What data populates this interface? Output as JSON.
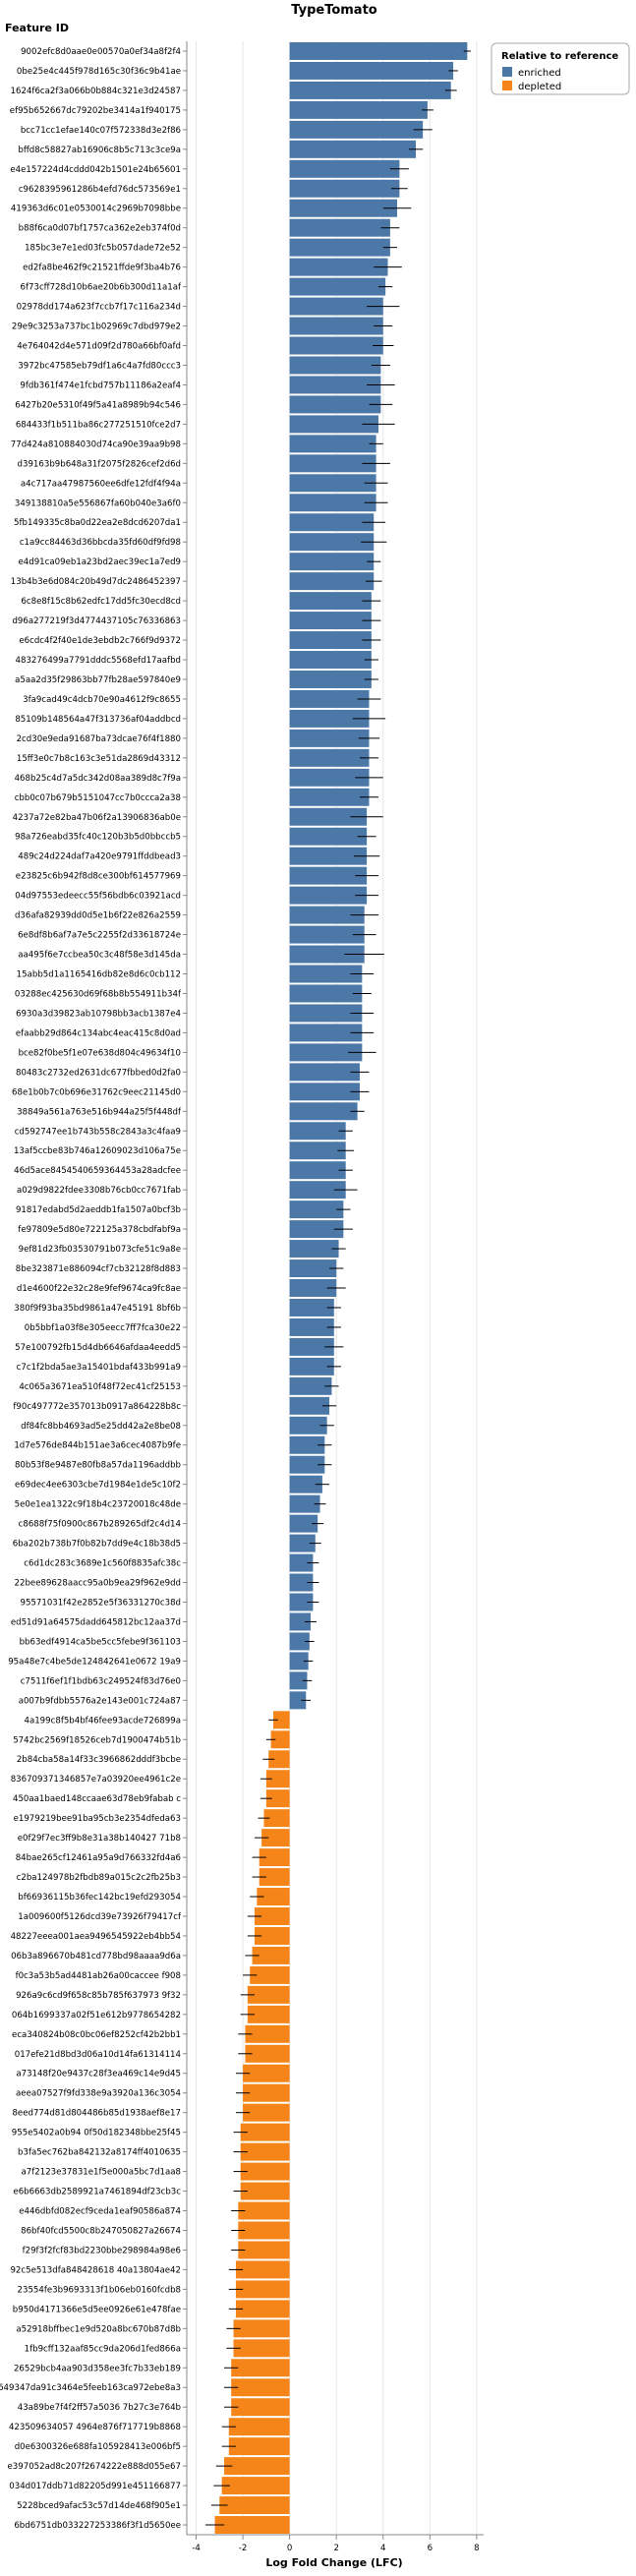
{
  "chart_data": {
    "type": "bar",
    "orientation": "horizontal",
    "title": "TypeTomato",
    "xlabel": "Log Fold Change (LFC)",
    "ylabel": "Feature ID",
    "xlim": [
      -4.4,
      8.3
    ],
    "xticks": [
      -4,
      -2,
      0,
      2,
      4,
      6,
      8
    ],
    "grid": true,
    "legend": {
      "title": "Relative to reference",
      "position": "top-right",
      "entries": [
        {
          "name": "enriched",
          "color": "#4c78a8"
        },
        {
          "name": "depleted",
          "color": "#f58518"
        }
      ]
    },
    "bars": [
      {
        "id": "9002efc8d0aae0e00570a0ef34a8f2f4",
        "value": 7.6,
        "err": 0.15,
        "group": "enriched"
      },
      {
        "id": "0be25e4c445f978d165c30f36c9b41ae",
        "value": 7.0,
        "err": 0.2,
        "group": "enriched"
      },
      {
        "id": "1624f6ca2f3a066b0b884c321e3d24587",
        "value": 6.9,
        "err": 0.25,
        "group": "enriched"
      },
      {
        "id": "ef95b652667dc79202be3414a1f940175",
        "value": 5.9,
        "err": 0.25,
        "group": "enriched"
      },
      {
        "id": "bcc71cc1efae140c07f572338d3e2f86",
        "value": 5.7,
        "err": 0.4,
        "group": "enriched"
      },
      {
        "id": "bffd8c58827ab16906c8b5c713c3ce9a",
        "value": 5.4,
        "err": 0.3,
        "group": "enriched"
      },
      {
        "id": "e4e157224d4cddd042b1501e24b65601",
        "value": 4.7,
        "err": 0.4,
        "group": "enriched"
      },
      {
        "id": "c9628395961286b4efd76dc573569e1",
        "value": 4.7,
        "err": 0.35,
        "group": "enriched"
      },
      {
        "id": "419363d6c01e0530014c2969b7098bbe",
        "value": 4.6,
        "err": 0.6,
        "group": "enriched"
      },
      {
        "id": "b88f6ca0d07bf1757ca362e2eb374f0d",
        "value": 4.3,
        "err": 0.4,
        "group": "enriched"
      },
      {
        "id": "185bc3e7e1ed03fc5b057dade72e52",
        "value": 4.3,
        "err": 0.3,
        "group": "enriched"
      },
      {
        "id": "ed2fa8be462f9c21521ffde9f3ba4b76",
        "value": 4.2,
        "err": 0.6,
        "group": "enriched"
      },
      {
        "id": "6f73cff728d10b6ae20b6b300d11a1af",
        "value": 4.1,
        "err": 0.3,
        "group": "enriched"
      },
      {
        "id": "02978dd174a623f7ccb7f17c116a234d",
        "value": 4.0,
        "err": 0.7,
        "group": "enriched"
      },
      {
        "id": "29e9c3253a737bc1b02969c7dbd979e2",
        "value": 4.0,
        "err": 0.4,
        "group": "enriched"
      },
      {
        "id": "4e764042d4e571d09f2d780a66bf0afd",
        "value": 4.0,
        "err": 0.45,
        "group": "enriched"
      },
      {
        "id": "3972bc47585eb79df1a6c4a7fd80ccc3",
        "value": 3.9,
        "err": 0.4,
        "group": "enriched"
      },
      {
        "id": "9fdb361f474e1fcbd757b11186a2eaf4",
        "value": 3.9,
        "err": 0.6,
        "group": "enriched"
      },
      {
        "id": "6427b20e5310f49f5a41a8989b94c546",
        "value": 3.9,
        "err": 0.5,
        "group": "enriched"
      },
      {
        "id": "684433f1b511ba86c277251510fce2d7",
        "value": 3.8,
        "err": 0.7,
        "group": "enriched"
      },
      {
        "id": "77d424a810884030d74ca90e39aa9b98",
        "value": 3.7,
        "err": 0.3,
        "group": "enriched"
      },
      {
        "id": "d39163b9b648a31f2075f2826cef2d6d",
        "value": 3.7,
        "err": 0.6,
        "group": "enriched"
      },
      {
        "id": "a4c717aa47987560ee6dfe12fdf4f94a",
        "value": 3.7,
        "err": 0.5,
        "group": "enriched"
      },
      {
        "id": "349138810a5e556867fa60b040e3a6f0",
        "value": 3.7,
        "err": 0.5,
        "group": "enriched"
      },
      {
        "id": "5fb149335c8ba0d22ea2e8dcd6207da1",
        "value": 3.6,
        "err": 0.5,
        "group": "enriched"
      },
      {
        "id": "c1a9cc84463d36bbcda35fd60df9fd98",
        "value": 3.6,
        "err": 0.55,
        "group": "enriched"
      },
      {
        "id": "e4d91ca09eb1a23bd2aec39ec1a7ed9",
        "value": 3.6,
        "err": 0.3,
        "group": "enriched"
      },
      {
        "id": "13b4b3e6d084c20b49d7dc2486452397",
        "value": 3.6,
        "err": 0.35,
        "group": "enriched"
      },
      {
        "id": "6c8e8f15c8b62edfc17dd5fc30ecd8cd",
        "value": 3.5,
        "err": 0.4,
        "group": "enriched"
      },
      {
        "id": "d96a277219f3d4774437105c76336863",
        "value": 3.5,
        "err": 0.4,
        "group": "enriched"
      },
      {
        "id": "e6cdc4f2f40e1de3ebdb2c766f9d9372",
        "value": 3.5,
        "err": 0.4,
        "group": "enriched"
      },
      {
        "id": "483276499a7791dddc5568efd17aafbd",
        "value": 3.5,
        "err": 0.3,
        "group": "enriched"
      },
      {
        "id": "a5aa2d35f29863bb77fb28ae597840e9",
        "value": 3.5,
        "err": 0.3,
        "group": "enriched"
      },
      {
        "id": "3fa9cad49c4dcb70e90a4612f9c8655",
        "value": 3.4,
        "err": 0.5,
        "group": "enriched"
      },
      {
        "id": "85109b148564a47f313736af04addbcd",
        "value": 3.4,
        "err": 0.7,
        "group": "enriched"
      },
      {
        "id": "2cd30e9eda91687ba73dcae76f4f1880",
        "value": 3.4,
        "err": 0.45,
        "group": "enriched"
      },
      {
        "id": "15ff3e0c7b8c163c3e51da2869d43312",
        "value": 3.4,
        "err": 0.4,
        "group": "enriched"
      },
      {
        "id": "468b25c4d7a5dc342d08aa389d8c7f9a",
        "value": 3.4,
        "err": 0.6,
        "group": "enriched"
      },
      {
        "id": "cbb0c07b679b5151047cc7b0ccca2a38",
        "value": 3.4,
        "err": 0.4,
        "group": "enriched"
      },
      {
        "id": "4237a72e82ba47b06f2a13906836ab0e",
        "value": 3.3,
        "err": 0.7,
        "group": "enriched"
      },
      {
        "id": "98a726eabd35fc40c120b3b5d0bbccb5",
        "value": 3.3,
        "err": 0.4,
        "group": "enriched"
      },
      {
        "id": "489c24d224daf7a420e9791ffddbead3",
        "value": 3.3,
        "err": 0.55,
        "group": "enriched"
      },
      {
        "id": "e23825c6b942f8d8ce300bf614577969",
        "value": 3.3,
        "err": 0.5,
        "group": "enriched"
      },
      {
        "id": "04d97553edeecc55f56bdb6c03921acd",
        "value": 3.3,
        "err": 0.5,
        "group": "enriched"
      },
      {
        "id": "d36afa82939dd0d5e1b6f22e826a2559",
        "value": 3.2,
        "err": 0.6,
        "group": "enriched"
      },
      {
        "id": "6e8df8b6af7a7e5c2255f2d33618724e",
        "value": 3.2,
        "err": 0.5,
        "group": "enriched"
      },
      {
        "id": "aa495f6e7ccbea50c3c48f58e3d145da",
        "value": 3.2,
        "err": 0.85,
        "group": "enriched"
      },
      {
        "id": "15abb5d1a1165416db82e8d6c0cb112",
        "value": 3.1,
        "err": 0.5,
        "group": "enriched"
      },
      {
        "id": "03288ec425630d69f68b8b554911b34f",
        "value": 3.1,
        "err": 0.4,
        "group": "enriched"
      },
      {
        "id": "6930a3d39823ab10798bb3acb1387e4",
        "value": 3.1,
        "err": 0.5,
        "group": "enriched"
      },
      {
        "id": "efaabb29d864c134abc4eac415c8d0ad",
        "value": 3.1,
        "err": 0.5,
        "group": "enriched"
      },
      {
        "id": "bce82f0be5f1e07e638d804c49634f10",
        "value": 3.1,
        "err": 0.6,
        "group": "enriched"
      },
      {
        "id": "80483c2732ed2631dc677fbbed0d2fa0",
        "value": 3.0,
        "err": 0.4,
        "group": "enriched"
      },
      {
        "id": "68e1b0b7c0b696e31762c9eec21145d0",
        "value": 3.0,
        "err": 0.4,
        "group": "enriched"
      },
      {
        "id": "38849a561a763e516b944a25f5f448df",
        "value": 2.9,
        "err": 0.3,
        "group": "enriched"
      },
      {
        "id": "cd592747ee1b743b558c2843a3c4faa9",
        "value": 2.4,
        "err": 0.3,
        "group": "enriched"
      },
      {
        "id": "13af5ccbe83b746a12609023d106a75e",
        "value": 2.4,
        "err": 0.35,
        "group": "enriched"
      },
      {
        "id": "46d5ace8454540659364453a28adcfee",
        "value": 2.4,
        "err": 0.3,
        "group": "enriched"
      },
      {
        "id": "a029d9822fdee3308b76cb0cc7671fab",
        "value": 2.4,
        "err": 0.5,
        "group": "enriched"
      },
      {
        "id": "91817edabd5d2aeddb1fa1507a0bcf3b",
        "value": 2.3,
        "err": 0.3,
        "group": "enriched"
      },
      {
        "id": "fe97809e5d80e722125a378cbdfabf9a",
        "value": 2.3,
        "err": 0.4,
        "group": "enriched"
      },
      {
        "id": "9ef81d23fb03530791b073cfe51c9a8e",
        "value": 2.1,
        "err": 0.3,
        "group": "enriched"
      },
      {
        "id": "8be323871e886094cf7cb32128f8d883",
        "value": 2.0,
        "err": 0.3,
        "group": "enriched"
      },
      {
        "id": "d1e4600f22e32c28e9fef9674ca9fc8ae",
        "value": 2.0,
        "err": 0.4,
        "group": "enriched"
      },
      {
        "id": "380f9f93ba35bd9861a47e45191 8bf6b",
        "value": 1.9,
        "err": 0.3,
        "group": "enriched"
      },
      {
        "id": "0b5bbf1a03f8e305eecc7ff7fca30e22",
        "value": 1.9,
        "err": 0.3,
        "group": "enriched"
      },
      {
        "id": "57e100792fb15d4db6646afdaa4eedd5",
        "value": 1.9,
        "err": 0.4,
        "group": "enriched"
      },
      {
        "id": "c7c1f2bda5ae3a15401bdaf433b991a9",
        "value": 1.9,
        "err": 0.3,
        "group": "enriched"
      },
      {
        "id": "4c065a3671ea510f48f72ec41cf25153",
        "value": 1.8,
        "err": 0.3,
        "group": "enriched"
      },
      {
        "id": "f90c497772e357013b0917a864228b8c",
        "value": 1.7,
        "err": 0.3,
        "group": "enriched"
      },
      {
        "id": "df84fc8bb4693ad5e25dd42a2e8be08",
        "value": 1.6,
        "err": 0.3,
        "group": "enriched"
      },
      {
        "id": "1d7e576de844b151ae3a6cec4087b9fe",
        "value": 1.5,
        "err": 0.3,
        "group": "enriched"
      },
      {
        "id": "80b53f8e9487e80fb8a57da1196addbb",
        "value": 1.5,
        "err": 0.3,
        "group": "enriched"
      },
      {
        "id": "e69dec4ee6303cbe7d1984e1de5c10f2",
        "value": 1.4,
        "err": 0.3,
        "group": "enriched"
      },
      {
        "id": "5e0e1ea1322c9f18b4c23720018c48de",
        "value": 1.3,
        "err": 0.25,
        "group": "enriched"
      },
      {
        "id": "c8688f75f0900c867b289265df2c4d14",
        "value": 1.2,
        "err": 0.25,
        "group": "enriched"
      },
      {
        "id": "6ba202b738b7f0b82b7dd9e4c18b38d5",
        "value": 1.1,
        "err": 0.25,
        "group": "enriched"
      },
      {
        "id": "c6d1dc283c3689e1c560f8835afc38c",
        "value": 1.0,
        "err": 0.25,
        "group": "enriched"
      },
      {
        "id": "22bee89628aacc95a0b9ea29f962e9dd",
        "value": 1.0,
        "err": 0.25,
        "group": "enriched"
      },
      {
        "id": "95571031f42e2852e5f36331270c38d",
        "value": 1.0,
        "err": 0.25,
        "group": "enriched"
      },
      {
        "id": "ed51d91a64575dadd645812bc12aa37d",
        "value": 0.9,
        "err": 0.25,
        "group": "enriched"
      },
      {
        "id": "bb63edf4914ca5be5cc5febe9f361103",
        "value": 0.85,
        "err": 0.2,
        "group": "enriched"
      },
      {
        "id": "95a48e7c4be5de124842641e0672 19a9",
        "value": 0.8,
        "err": 0.2,
        "group": "enriched"
      },
      {
        "id": "c7511f6ef1f1bdb63c249524f83d76e0",
        "value": 0.75,
        "err": 0.2,
        "group": "enriched"
      },
      {
        "id": "a007b9fdbb5576a2e143e001c724a87",
        "value": 0.7,
        "err": 0.2,
        "group": "enriched"
      },
      {
        "id": "4a199c8f5b4bf46fee93acde726899a",
        "value": -0.7,
        "err": 0.2,
        "group": "depleted"
      },
      {
        "id": "5742bc2569f18526ceb7d1900474b51b",
        "value": -0.8,
        "err": 0.2,
        "group": "depleted"
      },
      {
        "id": "2b84cba58a14f33c3966862dddf3bcbe",
        "value": -0.9,
        "err": 0.25,
        "group": "depleted"
      },
      {
        "id": "836709371346857e7a03920ee4961c2e",
        "value": -1.0,
        "err": 0.25,
        "group": "depleted"
      },
      {
        "id": "450aa1baed148ccaae63d78eb9fabab c",
        "value": -1.0,
        "err": 0.25,
        "group": "depleted"
      },
      {
        "id": "e1979219bee91ba95cb3e2354dfeda63",
        "value": -1.1,
        "err": 0.25,
        "group": "depleted"
      },
      {
        "id": "e0f29f7ec3ff9b8e31a38b140427 71b8",
        "value": -1.2,
        "err": 0.3,
        "group": "depleted"
      },
      {
        "id": "84bae265cf12461a95a9d766332fd4a6",
        "value": -1.3,
        "err": 0.3,
        "group": "depleted"
      },
      {
        "id": "c2ba124978b2fbdb89a015c2c2fb25b3",
        "value": -1.3,
        "err": 0.3,
        "group": "depleted"
      },
      {
        "id": "bf66936115b36fec142bc19efd293054",
        "value": -1.4,
        "err": 0.3,
        "group": "depleted"
      },
      {
        "id": "1a009600f5126dcd39e73926f79417cf",
        "value": -1.5,
        "err": 0.3,
        "group": "depleted"
      },
      {
        "id": "48227eeea001aea9496545922eb4bb54",
        "value": -1.5,
        "err": 0.3,
        "group": "depleted"
      },
      {
        "id": "06b3a896670b481cd778bd98aaaa9d6a",
        "value": -1.6,
        "err": 0.3,
        "group": "depleted"
      },
      {
        "id": "f0c3a53b5ad4481ab26a00caccee f908",
        "value": -1.7,
        "err": 0.3,
        "group": "depleted"
      },
      {
        "id": "926a9c6cd9f658c85b785f637973 9f32",
        "value": -1.8,
        "err": 0.3,
        "group": "depleted"
      },
      {
        "id": "064b1699337a02f51e612b9778654282",
        "value": -1.8,
        "err": 0.3,
        "group": "depleted"
      },
      {
        "id": "eca340824b08c0bc06ef8252cf42b2bb1",
        "value": -1.9,
        "err": 0.3,
        "group": "depleted"
      },
      {
        "id": "017efe21d8bd3d06a10d14fa61314114",
        "value": -1.9,
        "err": 0.3,
        "group": "depleted"
      },
      {
        "id": "a73148f20e9437c28f3ea469c14e9d45",
        "value": -2.0,
        "err": 0.3,
        "group": "depleted"
      },
      {
        "id": "aeea07527f9fd338e9a3920a136c3054",
        "value": -2.0,
        "err": 0.3,
        "group": "depleted"
      },
      {
        "id": "8eed774d81d804486b85d1938aef8e17",
        "value": -2.0,
        "err": 0.3,
        "group": "depleted"
      },
      {
        "id": "955e5402a0b94 0f50d182348bbe25f45",
        "value": -2.1,
        "err": 0.3,
        "group": "depleted"
      },
      {
        "id": "b3fa5ec762ba842132a8174ff4010635",
        "value": -2.1,
        "err": 0.3,
        "group": "depleted"
      },
      {
        "id": "a7f2123e37831e1f5e000a5bc7d1aa8",
        "value": -2.1,
        "err": 0.3,
        "group": "depleted"
      },
      {
        "id": "e6b6663db2589921a7461894df23cb3c",
        "value": -2.1,
        "err": 0.3,
        "group": "depleted"
      },
      {
        "id": "e446dbfd082ecf9ceda1eaf90586a874",
        "value": -2.2,
        "err": 0.3,
        "group": "depleted"
      },
      {
        "id": "86bf40fcd5500c8b247050827a26674",
        "value": -2.2,
        "err": 0.3,
        "group": "depleted"
      },
      {
        "id": "f29f3f2fcf83bd2230bbe298984a98e6",
        "value": -2.2,
        "err": 0.3,
        "group": "depleted"
      },
      {
        "id": "92c5e513dfa848428618 40a13804ae42",
        "value": -2.3,
        "err": 0.3,
        "group": "depleted"
      },
      {
        "id": "23554fe3b9693313f1b06eb0160fcdb8",
        "value": -2.3,
        "err": 0.3,
        "group": "depleted"
      },
      {
        "id": "b950d4171366e5d5ee0926e61e478fae",
        "value": -2.3,
        "err": 0.3,
        "group": "depleted"
      },
      {
        "id": "a52918bffbec1e9d520a8bc670b87d8b",
        "value": -2.4,
        "err": 0.3,
        "group": "depleted"
      },
      {
        "id": "1fb9cff132aaf85cc9da206d1fed866a",
        "value": -2.4,
        "err": 0.3,
        "group": "depleted"
      },
      {
        "id": "26529bcb4aa903d358ee3fc7b33eb189",
        "value": -2.5,
        "err": 0.3,
        "group": "depleted"
      },
      {
        "id": "649347da91c3464e5feeb163ca972ebe8a3",
        "value": -2.5,
        "err": 0.3,
        "group": "depleted"
      },
      {
        "id": "43a89be7f4f2ff57a5036 7b27c3e764b",
        "value": -2.5,
        "err": 0.3,
        "group": "depleted"
      },
      {
        "id": "423509634057 4964e876f717719b8868",
        "value": -2.6,
        "err": 0.3,
        "group": "depleted"
      },
      {
        "id": "d0e6300326e688fa105928413e006bf5",
        "value": -2.6,
        "err": 0.3,
        "group": "depleted"
      },
      {
        "id": "e397052ad8c207f2674222e888d055e67",
        "value": -2.8,
        "err": 0.35,
        "group": "depleted"
      },
      {
        "id": "034d017ddb71d82205d991e451166877",
        "value": -2.9,
        "err": 0.35,
        "group": "depleted"
      },
      {
        "id": "5228bced9afac53c57d14de468f905e1",
        "value": -3.0,
        "err": 0.35,
        "group": "depleted"
      },
      {
        "id": "6bd6751db033227253386f3f1d5650ee",
        "value": -3.2,
        "err": 0.4,
        "group": "depleted"
      }
    ]
  }
}
